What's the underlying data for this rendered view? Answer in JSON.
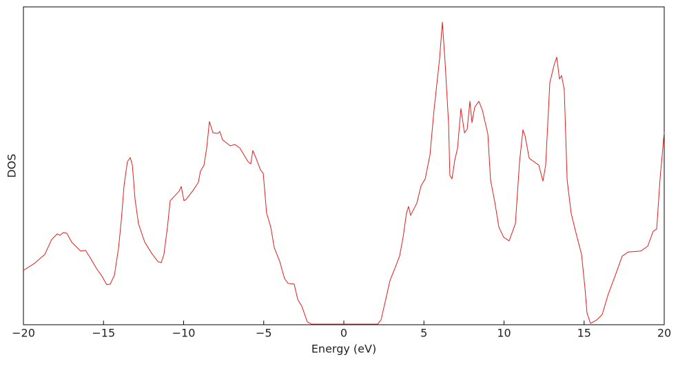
{
  "chart_data": {
    "type": "line",
    "xlabel": "Energy (eV)",
    "ylabel": "DOS",
    "xlim": [
      -20,
      20
    ],
    "ylim": [
      0,
      100
    ],
    "xticks": [
      {
        "value": -20,
        "label": "−20"
      },
      {
        "value": -15,
        "label": "−15"
      },
      {
        "value": -10,
        "label": "−10"
      },
      {
        "value": -5,
        "label": "−5"
      },
      0,
      5,
      10,
      15,
      20
    ],
    "series": [
      {
        "name": "DOS",
        "color": "#e41a1c",
        "x": [
          -20,
          -19.31,
          -18.67,
          -18.24,
          -17.89,
          -17.72,
          -17.51,
          -17.29,
          -16.99,
          -16.43,
          -16.13,
          -15.87,
          -15.44,
          -15.14,
          -14.8,
          -14.58,
          -14.32,
          -14.06,
          -13.89,
          -13.72,
          -13.51,
          -13.33,
          -13.2,
          -13.03,
          -12.82,
          -12.43,
          -12.0,
          -11.61,
          -11.4,
          -11.23,
          -11.01,
          -10.84,
          -10.49,
          -10.28,
          -10.15,
          -9.98,
          -9.85,
          -9.42,
          -9.08,
          -8.95,
          -8.73,
          -8.56,
          -8.39,
          -8.17,
          -7.87,
          -7.74,
          -7.57,
          -7.1,
          -6.8,
          -6.49,
          -5.98,
          -5.81,
          -5.68,
          -5.51,
          -5.2,
          -5.03,
          -4.82,
          -4.56,
          -4.34,
          -4.0,
          -3.7,
          -3.48,
          -3.1,
          -2.88,
          -2.62,
          -2.28,
          -2.02,
          2.11,
          2.32,
          2.62,
          2.88,
          3.27,
          3.48,
          3.7,
          3.91,
          4.04,
          4.17,
          4.56,
          4.82,
          5.08,
          5.38,
          5.63,
          5.98,
          6.15,
          6.32,
          6.54,
          6.62,
          6.75,
          6.93,
          7.1,
          7.31,
          7.53,
          7.7,
          7.87,
          8.0,
          8.17,
          8.43,
          8.65,
          8.99,
          9.16,
          9.42,
          9.68,
          9.98,
          10.32,
          10.71,
          10.97,
          11.18,
          11.31,
          11.57,
          11.87,
          12.17,
          12.43,
          12.6,
          12.86,
          13.12,
          13.29,
          13.46,
          13.59,
          13.76,
          13.94,
          14.19,
          14.45,
          14.84,
          15.05,
          15.18,
          15.4,
          15.78,
          16.13,
          16.47,
          16.95,
          17.38,
          17.76,
          18.54,
          18.97,
          19.31,
          19.53,
          19.74,
          20.0
        ],
        "values": [
          17.1,
          19.3,
          22.1,
          26.8,
          28.6,
          28.1,
          29.0,
          28.8,
          26.0,
          23.2,
          23.4,
          21.4,
          17.7,
          15.6,
          12.6,
          12.8,
          15.6,
          24.2,
          32.9,
          43.7,
          51.3,
          52.6,
          50.2,
          39.4,
          31.8,
          26.0,
          22.5,
          19.9,
          19.5,
          22.1,
          30.7,
          39.0,
          40.9,
          42.0,
          43.5,
          39.0,
          39.4,
          42.2,
          44.8,
          48.3,
          50.2,
          55.6,
          63.9,
          60.4,
          60.2,
          60.8,
          58.2,
          56.3,
          56.7,
          55.6,
          51.3,
          50.6,
          54.8,
          52.8,
          48.7,
          47.6,
          35.1,
          30.7,
          24.2,
          19.9,
          14.5,
          13.0,
          12.8,
          8.0,
          5.8,
          0.9,
          0.2,
          0.2,
          1.5,
          8.0,
          13.9,
          18.8,
          21.6,
          27.5,
          35.1,
          37.2,
          34.4,
          38.3,
          43.7,
          45.9,
          53.5,
          67.5,
          83.8,
          95.2,
          82.7,
          63.2,
          47.0,
          45.9,
          51.9,
          55.6,
          68.0,
          60.4,
          61.5,
          70.3,
          63.6,
          68.4,
          70.3,
          67.5,
          60.0,
          45.5,
          38.7,
          30.7,
          27.5,
          26.4,
          31.8,
          51.3,
          61.3,
          59.5,
          52.4,
          51.3,
          50.2,
          45.2,
          50.2,
          76.2,
          81.6,
          84.2,
          77.3,
          78.4,
          74.0,
          45.5,
          35.1,
          29.7,
          22.1,
          11.7,
          3.7,
          0.4,
          1.5,
          3.2,
          9.1,
          15.6,
          21.6,
          22.9,
          23.2,
          24.7,
          29.4,
          30.1,
          45.9,
          60.6
        ]
      }
    ]
  }
}
